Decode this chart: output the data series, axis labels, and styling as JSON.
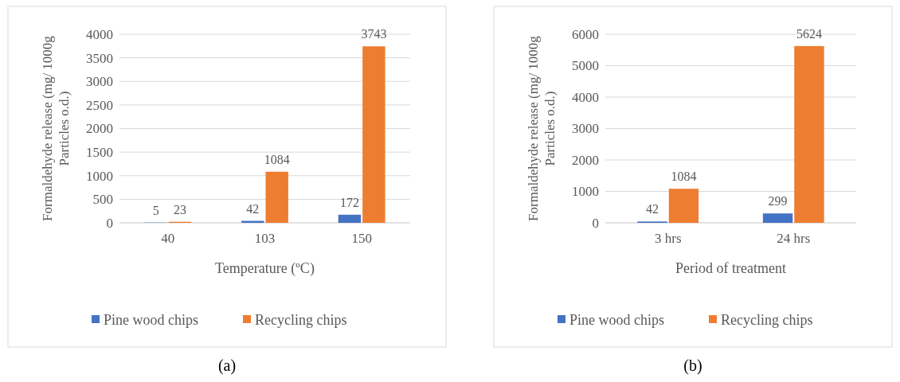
{
  "chart_data": [
    {
      "type": "bar",
      "categories": [
        "40",
        "103",
        "150"
      ],
      "xlabel": "Temperature (ºC)",
      "ylabel": "Formaldehyde release (mg/ 1000g\nParticles o.d.)",
      "ylim": [
        0,
        4000
      ],
      "yticks": [
        0,
        500,
        1000,
        1500,
        2000,
        2500,
        3000,
        3500,
        4000
      ],
      "grid": "y",
      "legend": "bottom",
      "data_labels": true,
      "annotations": [
        "(a)"
      ],
      "series": [
        {
          "name": "Pine wood chips",
          "color": "#4472c4",
          "values": [
            5,
            42,
            172
          ]
        },
        {
          "name": "Recycling chips",
          "color": "#ed7d31",
          "values": [
            23,
            1084,
            3743
          ]
        }
      ]
    },
    {
      "type": "bar",
      "categories": [
        "3 hrs",
        "24 hrs"
      ],
      "xlabel": "Period of treatment",
      "ylabel": "Formaldehyde release (mg/ 1000g\nParticles o.d.)",
      "ylim": [
        0,
        6000
      ],
      "yticks": [
        0,
        1000,
        2000,
        3000,
        4000,
        5000,
        6000
      ],
      "grid": "y",
      "legend": "bottom",
      "data_labels": true,
      "annotations": [
        "(b)"
      ],
      "series": [
        {
          "name": "Pine wood chips",
          "color": "#4472c4",
          "values": [
            42,
            299
          ]
        },
        {
          "name": "Recycling chips",
          "color": "#ed7d31",
          "values": [
            1084,
            5624
          ]
        }
      ]
    }
  ]
}
